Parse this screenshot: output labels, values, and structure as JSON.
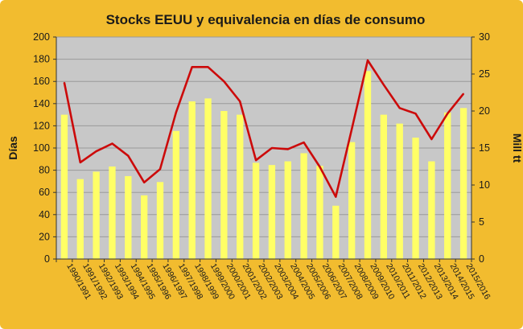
{
  "chart_data": {
    "type": "bar+line",
    "title": "Stocks EEUU y equivalencia en días de consumo",
    "ylabel_left": "Días",
    "ylabel_right": "Mill tt",
    "ylim_left": [
      0,
      200
    ],
    "ylim_right": [
      0,
      30
    ],
    "yticks_left": [
      "0",
      "20",
      "40",
      "60",
      "80",
      "100",
      "120",
      "140",
      "160",
      "180",
      "200"
    ],
    "yticks_right": [
      "0",
      "5",
      "10",
      "15",
      "20",
      "25",
      "30"
    ],
    "grid": true,
    "categories": [
      "1990/1991",
      "1991/1992",
      "1992/1993",
      "1993/1994",
      "1994/1995",
      "1995/1996",
      "1996/1997",
      "1997/1998",
      "1998/1999",
      "1999/2000",
      "2000/2001",
      "2001/2002",
      "2002/2003",
      "2003/2004",
      "2004/2005",
      "2005/2006",
      "2006/2007",
      "2007/2008",
      "2008/2009",
      "2009/2010",
      "2010/2011",
      "2011/2012",
      "2012/2013",
      "2013/2014",
      "2014/2015",
      "2015/2016"
    ],
    "series": [
      {
        "type": "bar",
        "axis": "right",
        "color": "#ffff66",
        "values": [
          19.5,
          10.8,
          11.8,
          12.5,
          11.2,
          8.6,
          10.4,
          17.3,
          21.3,
          21.7,
          20.0,
          19.5,
          13.0,
          12.7,
          13.2,
          14.3,
          12.6,
          7.2,
          15.8,
          25.4,
          19.5,
          18.3,
          16.4,
          13.2,
          19.8,
          20.4
        ]
      },
      {
        "type": "line",
        "axis": "left",
        "color": "#cc0a0a",
        "values": [
          159,
          87,
          97,
          104,
          93,
          69,
          81,
          132,
          173,
          173,
          160,
          142,
          89,
          100,
          99,
          105,
          83,
          56,
          117,
          179,
          157,
          136,
          131,
          108,
          131,
          149
        ]
      }
    ]
  }
}
